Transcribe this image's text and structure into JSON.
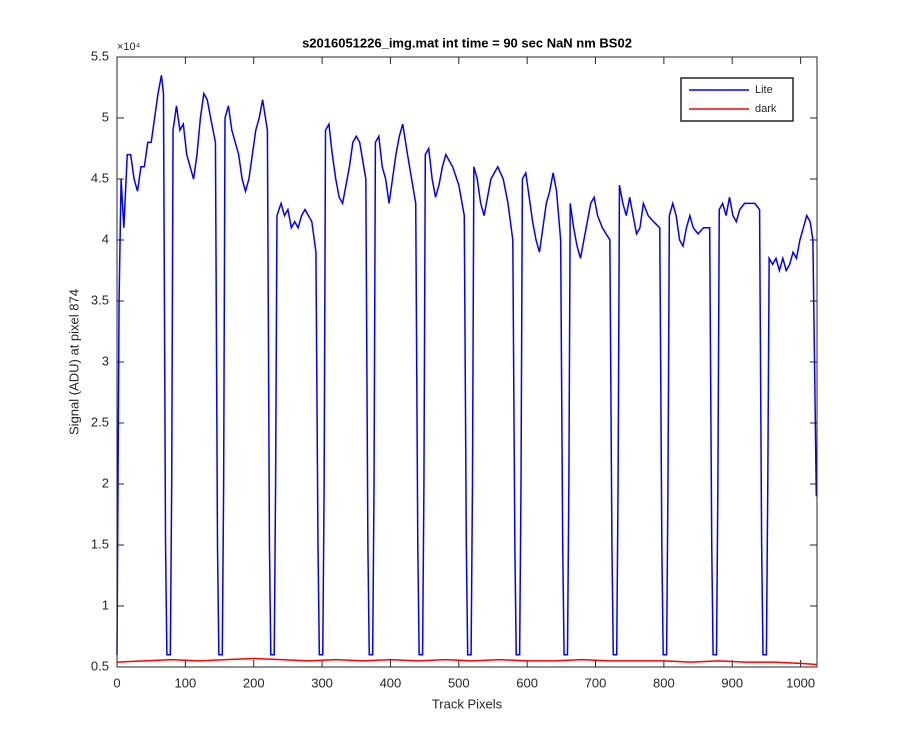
{
  "chart_data": {
    "type": "line",
    "title": "s2016051226_img.mat int time = 90 sec  NaN nm BS02",
    "x_label": "Track Pixels",
    "y_label": "Signal (ADU) at pixel 874",
    "y_exponent": "×10⁴",
    "xlim": [
      0,
      1024
    ],
    "ylim": [
      0.5,
      5.5
    ],
    "xticks": [
      0,
      100,
      200,
      300,
      400,
      500,
      600,
      700,
      800,
      900,
      1000
    ],
    "yticks": [
      0.5,
      1,
      1.5,
      2,
      2.5,
      3,
      3.5,
      4,
      4.5,
      5,
      5.5
    ],
    "legend": "top-right",
    "series": [
      {
        "name": "Lite",
        "color": "#0000ff",
        "x": [
          0,
          3,
          6,
          10,
          15,
          20,
          25,
          30,
          35,
          40,
          45,
          50,
          55,
          60,
          65,
          68,
          71,
          73,
          78,
          80,
          82,
          87,
          92,
          97,
          102,
          107,
          112,
          117,
          122,
          127,
          132,
          137,
          144,
          147,
          149,
          154,
          156,
          158,
          163,
          168,
          173,
          178,
          183,
          188,
          193,
          198,
          203,
          208,
          213,
          220,
          223,
          225,
          230,
          232,
          234,
          240,
          245,
          250,
          255,
          260,
          265,
          270,
          275,
          280,
          285,
          291,
          294,
          296,
          301,
          303,
          305,
          310,
          315,
          320,
          325,
          330,
          335,
          340,
          345,
          350,
          355,
          364,
          367,
          369,
          374,
          376,
          378,
          383,
          388,
          393,
          398,
          403,
          408,
          413,
          418,
          425,
          437,
          440,
          442,
          447,
          449,
          451,
          456,
          461,
          466,
          471,
          476,
          481,
          486,
          491,
          500,
          508,
          511,
          513,
          518,
          520,
          522,
          527,
          532,
          537,
          542,
          547,
          552,
          557,
          565,
          572,
          579,
          582,
          584,
          589,
          591,
          593,
          598,
          603,
          608,
          613,
          618,
          623,
          628,
          633,
          638,
          643,
          649,
          652,
          654,
          659,
          661,
          663,
          668,
          673,
          678,
          683,
          688,
          693,
          698,
          703,
          710,
          721,
          724,
          726,
          731,
          733,
          735,
          740,
          745,
          750,
          755,
          760,
          765,
          770,
          777,
          785,
          794,
          797,
          799,
          804,
          806,
          808,
          813,
          818,
          823,
          828,
          833,
          838,
          843,
          850,
          858,
          867,
          870,
          872,
          877,
          879,
          881,
          886,
          891,
          896,
          901,
          906,
          911,
          918,
          925,
          933,
          940,
          943,
          945,
          950,
          952,
          954,
          959,
          964,
          969,
          974,
          979,
          984,
          989,
          994,
          999,
          1004,
          1009,
          1014,
          1018,
          1023
        ],
        "values": [
          0.6,
          3.5,
          4.5,
          4.1,
          4.7,
          4.7,
          4.5,
          4.4,
          4.6,
          4.6,
          4.8,
          4.8,
          5.0,
          5.2,
          5.35,
          5.2,
          1.5,
          0.6,
          0.6,
          2.0,
          4.9,
          5.1,
          4.9,
          4.95,
          4.7,
          4.6,
          4.5,
          4.7,
          5.0,
          5.2,
          5.15,
          5.0,
          4.8,
          1.5,
          0.6,
          0.6,
          2.0,
          5.0,
          5.1,
          4.9,
          4.8,
          4.7,
          4.5,
          4.4,
          4.5,
          4.7,
          4.9,
          5.0,
          5.15,
          4.9,
          1.5,
          0.6,
          0.6,
          2.0,
          4.2,
          4.3,
          4.2,
          4.25,
          4.1,
          4.15,
          4.1,
          4.2,
          4.25,
          4.2,
          4.15,
          3.9,
          1.5,
          0.6,
          0.6,
          2.0,
          4.9,
          4.95,
          4.7,
          4.5,
          4.35,
          4.3,
          4.45,
          4.6,
          4.8,
          4.85,
          4.8,
          4.5,
          1.5,
          0.6,
          0.6,
          2.0,
          4.8,
          4.85,
          4.6,
          4.5,
          4.3,
          4.5,
          4.7,
          4.85,
          4.95,
          4.7,
          4.3,
          1.5,
          0.6,
          0.6,
          2.0,
          4.7,
          4.75,
          4.5,
          4.35,
          4.45,
          4.6,
          4.7,
          4.65,
          4.6,
          4.45,
          4.2,
          1.5,
          0.6,
          0.6,
          2.0,
          4.6,
          4.5,
          4.3,
          4.2,
          4.35,
          4.5,
          4.55,
          4.6,
          4.5,
          4.3,
          4.0,
          1.5,
          0.6,
          0.6,
          2.0,
          4.5,
          4.55,
          4.35,
          4.15,
          4.0,
          3.9,
          4.1,
          4.3,
          4.4,
          4.55,
          4.4,
          4.0,
          1.5,
          0.6,
          0.6,
          2.0,
          4.3,
          4.1,
          3.95,
          3.85,
          4.0,
          4.15,
          4.3,
          4.35,
          4.2,
          4.1,
          4.0,
          1.5,
          0.6,
          0.6,
          2.0,
          4.45,
          4.3,
          4.2,
          4.35,
          4.2,
          4.05,
          4.1,
          4.3,
          4.2,
          4.15,
          4.1,
          1.5,
          0.6,
          0.6,
          2.0,
          4.2,
          4.3,
          4.2,
          4.0,
          3.95,
          4.1,
          4.2,
          4.1,
          4.05,
          4.1,
          4.1,
          1.5,
          0.6,
          0.6,
          2.0,
          4.25,
          4.3,
          4.2,
          4.35,
          4.2,
          4.15,
          4.25,
          4.3,
          4.3,
          4.3,
          4.25,
          1.5,
          0.6,
          0.6,
          2.0,
          3.85,
          3.8,
          3.85,
          3.75,
          3.85,
          3.75,
          3.8,
          3.9,
          3.85,
          4.0,
          4.1,
          4.2,
          4.15,
          4.0,
          1.9
        ]
      },
      {
        "name": "dark",
        "color": "#ff0000",
        "x": [
          0,
          40,
          80,
          120,
          160,
          200,
          240,
          280,
          320,
          360,
          400,
          440,
          480,
          520,
          560,
          600,
          640,
          680,
          720,
          760,
          800,
          840,
          880,
          920,
          960,
          1000,
          1023
        ],
        "values": [
          0.54,
          0.55,
          0.56,
          0.55,
          0.56,
          0.57,
          0.56,
          0.55,
          0.56,
          0.55,
          0.56,
          0.55,
          0.56,
          0.55,
          0.56,
          0.55,
          0.55,
          0.56,
          0.55,
          0.55,
          0.55,
          0.54,
          0.55,
          0.54,
          0.54,
          0.53,
          0.52
        ]
      }
    ]
  }
}
